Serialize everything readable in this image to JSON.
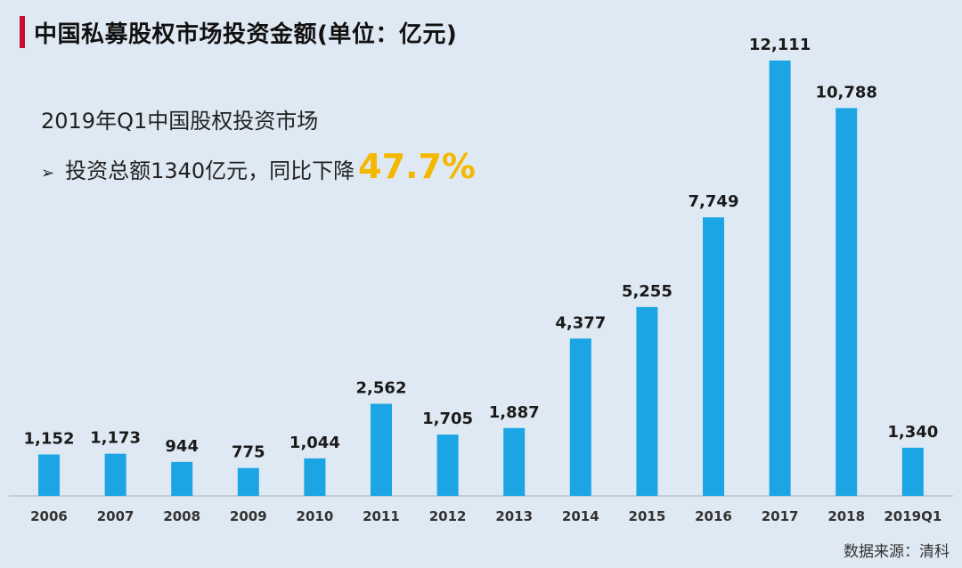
{
  "title": "中国私募股权市场投资金额(单位：亿元)",
  "callout": {
    "line1": "2019年Q1中国股权投资市场",
    "bullet": "➢",
    "line2_prefix": "投资总额1340亿元，同比下降",
    "highlight": "47.7%"
  },
  "source": "数据来源：清科",
  "colors": {
    "bar": "#1ca5e4",
    "accent": "#c8102e",
    "highlight": "#f5b800"
  },
  "chart_data": {
    "type": "bar",
    "title": "中国私募股权市场投资金额(单位：亿元)",
    "categories": [
      "2006",
      "2007",
      "2008",
      "2009",
      "2010",
      "2011",
      "2012",
      "2013",
      "2014",
      "2015",
      "2016",
      "2017",
      "2018",
      "2019Q1"
    ],
    "values": [
      1152,
      1173,
      944,
      775,
      1044,
      2562,
      1705,
      1887,
      4377,
      5255,
      7749,
      12111,
      10788,
      1340
    ],
    "value_labels": [
      "1,152",
      "1,173",
      "944",
      "775",
      "1,044",
      "2,562",
      "1,705",
      "1,887",
      "4,377",
      "5,255",
      "7,749",
      "12,111",
      "10,788",
      "1,340"
    ],
    "xlabel": "",
    "ylabel": "",
    "ylim": [
      0,
      12111
    ],
    "grid": false,
    "legend": "none"
  }
}
